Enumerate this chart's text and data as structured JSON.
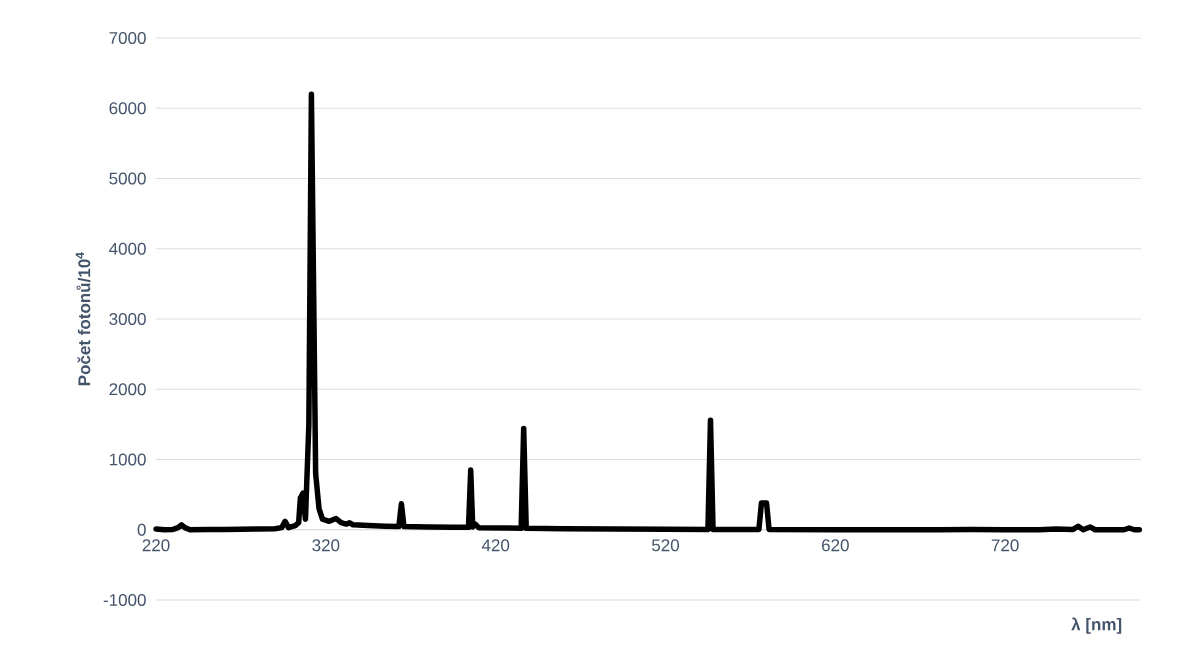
{
  "chart_data": {
    "type": "line",
    "xlabel": "λ [nm]",
    "ylabel": "Počet fotonů/10$^{4}$",
    "xlim": [
      220,
      800
    ],
    "xticks": [
      220,
      320,
      420,
      520,
      620,
      720
    ],
    "ylim": [
      -1000,
      7000
    ],
    "yticks": [
      -1000,
      0,
      1000,
      2000,
      3000,
      4000,
      5000,
      6000,
      7000
    ],
    "grid": "y",
    "series": [
      {
        "color": "#000000",
        "x": [
          220,
          225,
          230,
          233,
          235,
          237,
          240,
          250,
          260,
          270,
          280,
          290,
          294,
          296,
          298,
          302,
          304,
          305,
          306.5,
          308,
          310,
          311.5,
          313,
          314,
          316,
          318,
          322,
          326,
          329,
          332,
          334,
          336,
          345,
          355,
          363,
          364.5,
          366,
          380,
          395,
          404,
          405.3,
          406.5,
          408,
          410,
          425,
          435,
          436.5,
          438,
          460,
          490,
          520,
          545,
          546.5,
          548,
          575,
          576.5,
          578,
          579.5,
          581,
          620,
          680,
          700,
          720,
          740,
          750,
          760,
          763,
          766,
          770,
          773,
          790,
          793,
          796,
          799
        ],
        "values": [
          10,
          0,
          5,
          30,
          70,
          30,
          0,
          5,
          5,
          8,
          10,
          15,
          30,
          120,
          30,
          60,
          100,
          450,
          520,
          150,
          1500,
          6200,
          3000,
          800,
          300,
          150,
          120,
          160,
          100,
          80,
          100,
          70,
          60,
          50,
          45,
          370,
          45,
          40,
          35,
          35,
          850,
          40,
          80,
          30,
          25,
          20,
          1440,
          20,
          15,
          10,
          8,
          5,
          1560,
          5,
          3,
          380,
          380,
          380,
          3,
          0,
          0,
          5,
          0,
          0,
          10,
          5,
          50,
          0,
          40,
          0,
          0,
          25,
          0,
          0
        ]
      }
    ]
  }
}
